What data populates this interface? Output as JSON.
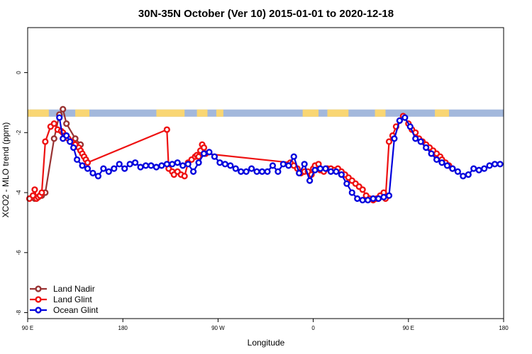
{
  "chart_data": {
    "type": "line",
    "title": "30N-35N October (Ver 10)   2015-01-01 to 2020-12-18",
    "xlabel": "Longitude",
    "ylabel": "XCO2 - MLO trend (ppm)",
    "xlim": [
      -90,
      180
    ],
    "ylim": [
      -8.2,
      1.5
    ],
    "x_ticks": [
      {
        "value": -90,
        "label": "90 E"
      },
      {
        "value": -36,
        "label": "180"
      },
      {
        "value": 18,
        "label": "90 W"
      },
      {
        "value": 72,
        "label": "0"
      },
      {
        "value": 126,
        "label": "90 E"
      },
      {
        "value": 180,
        "label": "180"
      }
    ],
    "y_ticks": [
      {
        "value": 0,
        "label": "0"
      },
      {
        "value": -2,
        "label": "-2"
      },
      {
        "value": -4,
        "label": "-4"
      },
      {
        "value": -6,
        "label": "-6"
      },
      {
        "value": -8,
        "label": "-8"
      }
    ],
    "legend_position": "bottom-left",
    "surface_band": {
      "y_top": -1.23,
      "y_bottom": -1.47,
      "ocean_color": "#a3b8dc",
      "land_color": "#f9d673",
      "land_ranges": [
        [
          -90,
          -78
        ],
        [
          -63,
          -55
        ],
        [
          -17,
          -1
        ],
        [
          6,
          12
        ],
        [
          17,
          21
        ],
        [
          66,
          75
        ],
        [
          80,
          92
        ],
        [
          107,
          113
        ],
        [
          141,
          149
        ]
      ]
    },
    "series": [
      {
        "name": "Land Nadir",
        "color": "#993333",
        "x": [
          -86,
          -84,
          -82,
          -80,
          -75,
          -72,
          -70,
          -68,
          -63,
          -60
        ],
        "y": [
          -4.2,
          -4.15,
          -4.1,
          -4.0,
          -2.2,
          -1.4,
          -1.22,
          -1.7,
          -2.2,
          -2.4
        ]
      },
      {
        "name": "Land Glint",
        "color": "#ee1111",
        "x": [
          -89,
          -87,
          -86,
          -85,
          -84,
          -83,
          -82,
          -80,
          -77,
          -75,
          -73,
          -71,
          -70,
          -69,
          -67,
          -65,
          -63,
          -61,
          -60,
          -59,
          -58,
          -57,
          -56,
          -11,
          -10,
          -8,
          -7,
          -5,
          -3,
          -1,
          1,
          3,
          5,
          6,
          7,
          8,
          9,
          10,
          11,
          59,
          61,
          63,
          65,
          67,
          69,
          71,
          72,
          73,
          75,
          76,
          78,
          80,
          82,
          84,
          86,
          88,
          90,
          92,
          94,
          96,
          98,
          100,
          102,
          104,
          106,
          108,
          110,
          112,
          113,
          115,
          117,
          119,
          121,
          123,
          126,
          128,
          130,
          132,
          134,
          136,
          138,
          140,
          142,
          144,
          145,
          147,
          149,
          151
        ],
        "y": [
          -4.2,
          -4.1,
          -3.9,
          -4.2,
          -4.15,
          -4.1,
          -4.0,
          -2.3,
          -1.8,
          -1.7,
          -1.9,
          -1.95,
          -2.0,
          -2.1,
          -2.2,
          -2.3,
          -2.4,
          -2.5,
          -2.6,
          -2.7,
          -2.8,
          -2.9,
          -3.0,
          -1.9,
          -3.2,
          -3.3,
          -3.4,
          -3.3,
          -3.4,
          -3.45,
          -3.0,
          -2.9,
          -2.8,
          -2.75,
          -2.8,
          -2.6,
          -2.4,
          -2.5,
          -2.7,
          -3.0,
          -3.1,
          -3.2,
          -3.35,
          -3.3,
          -3.3,
          -3.4,
          -3.2,
          -3.1,
          -3.05,
          -3.25,
          -3.3,
          -3.2,
          -3.2,
          -3.25,
          -3.2,
          -3.3,
          -3.4,
          -3.5,
          -3.6,
          -3.7,
          -3.8,
          -3.9,
          -4.1,
          -4.2,
          -4.25,
          -4.2,
          -4.1,
          -4.0,
          -4.2,
          -2.3,
          -2.1,
          -1.8,
          -1.6,
          -1.45,
          -1.7,
          -1.9,
          -2.0,
          -2.2,
          -2.3,
          -2.4,
          -2.5,
          -2.6,
          -2.7,
          -2.8,
          -2.9,
          -3.0,
          -3.1,
          -3.2
        ],
        "note_hidden": false
      },
      {
        "name": "Ocean Glint",
        "color": "#0000dd",
        "x": [
          -72,
          -70,
          -68,
          -66,
          -64,
          -62,
          -59,
          -56,
          -53,
          -50,
          -47,
          -44,
          -41,
          -38,
          -35,
          -32,
          -29,
          -26,
          -23,
          -20,
          -17,
          -14,
          -11,
          -8,
          -5,
          -2,
          1,
          4,
          7,
          10,
          13,
          16,
          19,
          22,
          25,
          28,
          31,
          34,
          37,
          40,
          43,
          46,
          49,
          52,
          55,
          58,
          61,
          64,
          67,
          70,
          73,
          76,
          79,
          82,
          85,
          88,
          91,
          94,
          97,
          100,
          103,
          106,
          109,
          112,
          115,
          118,
          121,
          124,
          127,
          130,
          133,
          136,
          139,
          142,
          145,
          148,
          151,
          154,
          157,
          160,
          163,
          166,
          169,
          172,
          175,
          178
        ],
        "y": [
          -1.5,
          -2.2,
          -2.1,
          -2.3,
          -2.5,
          -2.9,
          -3.1,
          -3.2,
          -3.35,
          -3.45,
          -3.2,
          -3.3,
          -3.2,
          -3.05,
          -3.2,
          -3.05,
          -3.0,
          -3.15,
          -3.1,
          -3.1,
          -3.15,
          -3.1,
          -3.05,
          -3.05,
          -3.0,
          -3.1,
          -3.05,
          -3.3,
          -3.0,
          -2.7,
          -2.65,
          -2.8,
          -3.0,
          -3.05,
          -3.1,
          -3.2,
          -3.3,
          -3.3,
          -3.2,
          -3.3,
          -3.3,
          -3.3,
          -3.1,
          -3.3,
          -3.05,
          -3.1,
          -2.8,
          -3.35,
          -3.05,
          -3.6,
          -3.25,
          -3.2,
          -3.2,
          -3.3,
          -3.3,
          -3.4,
          -3.7,
          -4.0,
          -4.2,
          -4.25,
          -4.25,
          -4.2,
          -4.2,
          -4.15,
          -4.1,
          -2.2,
          -1.6,
          -1.5,
          -1.8,
          -2.2,
          -2.3,
          -2.5,
          -2.7,
          -2.9,
          -3.0,
          -3.1,
          -3.2,
          -3.3,
          -3.45,
          -3.4,
          -3.2,
          -3.25,
          -3.2,
          -3.1,
          -3.05,
          -3.05
        ]
      }
    ]
  }
}
